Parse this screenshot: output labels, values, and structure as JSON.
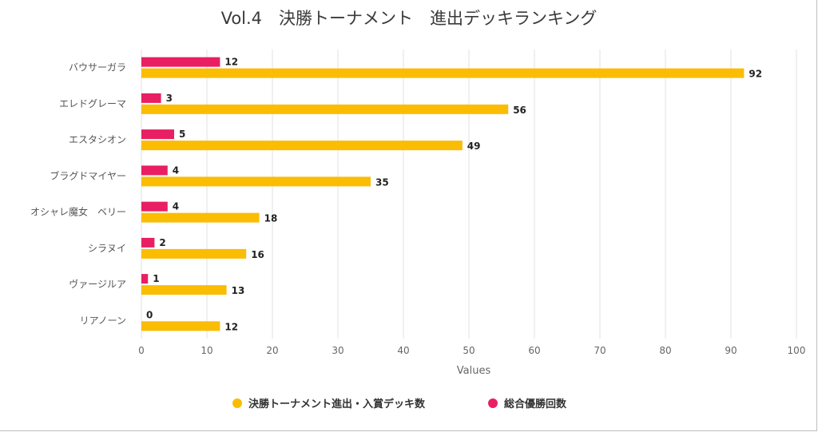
{
  "chart_data": {
    "type": "bar",
    "orientation": "horizontal",
    "title": "Vol.4　決勝トーナメント　進出デッキランキング",
    "xlabel": "Values",
    "ylabel": "",
    "xlim": [
      0,
      100
    ],
    "xticks": [
      0,
      10,
      20,
      30,
      40,
      50,
      60,
      70,
      80,
      90,
      100
    ],
    "grid": "vertical",
    "legend_position": "bottom",
    "categories": [
      "バウサーガラ",
      "エレドグレーマ",
      "エスタシオン",
      "ブラグドマイヤー",
      "オシャレ魔女　ベリー",
      "シラヌイ",
      "ヴァージルア",
      "リアノーン"
    ],
    "series": [
      {
        "name": "決勝トーナメント進出・入賞デッキ数",
        "color": "#FBBC04",
        "values": [
          92,
          56,
          49,
          35,
          18,
          16,
          13,
          12
        ]
      },
      {
        "name": "総合優勝回数",
        "color": "#E91E63",
        "values": [
          12,
          3,
          5,
          4,
          4,
          2,
          1,
          0
        ]
      }
    ]
  }
}
